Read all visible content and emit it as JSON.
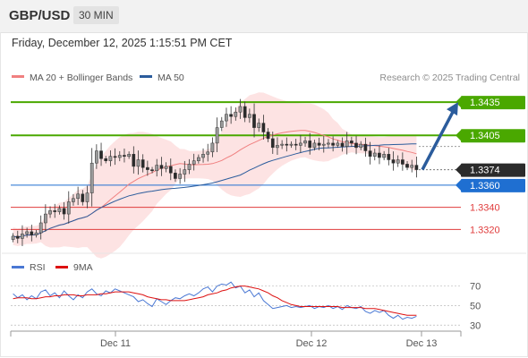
{
  "header": {
    "symbol": "GBP/USD",
    "interval": "30 MIN",
    "datetime": "Friday, December 12, 2025 1:15:51 PM CET"
  },
  "colors": {
    "ma20": "#f08080",
    "ma50": "#2b5c9c",
    "bollinger_fill": "#fde0e0",
    "resistance": "#4aa800",
    "pivot": "#1f6fd1",
    "support": "#e03c3c",
    "current_tag": "#2b2b2b",
    "arrow": "#2b5c9c",
    "rsi": "#4a78d4",
    "rsi_ma": "#dd1111",
    "candle_up": "#9a9a9a",
    "candle_down": "#2a2a2a"
  },
  "chart_data": [
    {
      "type": "candlestick",
      "legend": [
        {
          "label": "MA 20 + Bollinger Bands",
          "color_key": "ma20"
        },
        {
          "label": "MA 50",
          "color_key": "ma50"
        }
      ],
      "legend_placement": "top-left",
      "watermark": "Research © 2025 Trading Central",
      "x_ticks": [
        "Dec 11",
        "Dec 12",
        "Dec 13"
      ],
      "y_range": [
        1.3305,
        1.3448
      ],
      "levels": [
        {
          "label": "1.3435",
          "value": 1.3435,
          "kind": "resistance"
        },
        {
          "label": "1.3405",
          "value": 1.3405,
          "kind": "resistance"
        },
        {
          "label": "1.3374",
          "value": 1.3374,
          "kind": "current"
        },
        {
          "label": "1.3360",
          "value": 1.336,
          "kind": "pivot"
        },
        {
          "label": "1.3340",
          "value": 1.334,
          "kind": "support"
        },
        {
          "label": "1.3320",
          "value": 1.332,
          "kind": "support"
        }
      ],
      "forecast_arrow": {
        "from": 1.3374,
        "to": 1.3435
      },
      "close": [
        1.3314,
        1.3312,
        1.3316,
        1.3318,
        1.3315,
        1.3317,
        1.3326,
        1.3334,
        1.3337,
        1.3336,
        1.3339,
        1.3334,
        1.3345,
        1.3348,
        1.3352,
        1.3345,
        1.3353,
        1.338,
        1.3391,
        1.3384,
        1.3382,
        1.3386,
        1.3385,
        1.3387,
        1.3386,
        1.3388,
        1.3377,
        1.3383,
        1.3376,
        1.3374,
        1.3373,
        1.3378,
        1.3375,
        1.3377,
        1.3371,
        1.3366,
        1.337,
        1.3374,
        1.3379,
        1.3382,
        1.3385,
        1.3388,
        1.339,
        1.3398,
        1.3412,
        1.3418,
        1.3424,
        1.3422,
        1.3426,
        1.3431,
        1.3421,
        1.3424,
        1.3412,
        1.3416,
        1.3408,
        1.3402,
        1.3394,
        1.3396,
        1.3397,
        1.3396,
        1.3397,
        1.3396,
        1.3398,
        1.34,
        1.3394,
        1.3398,
        1.3396,
        1.3397,
        1.3398,
        1.3396,
        1.3398,
        1.3395,
        1.34,
        1.3398,
        1.3394,
        1.3397,
        1.3391,
        1.3386,
        1.3389,
        1.3385,
        1.3388,
        1.3383,
        1.338,
        1.3383,
        1.3379,
        1.3376,
        1.3378,
        1.3374
      ]
    },
    {
      "type": "line",
      "legend": [
        {
          "label": "RSI",
          "color_key": "rsi"
        },
        {
          "label": "9MA",
          "color_key": "rsi_ma"
        }
      ],
      "y_ticks": [
        70,
        50,
        30
      ],
      "y_range": [
        22,
        76
      ],
      "series": [
        {
          "name": "RSI",
          "values": [
            62,
            58,
            61,
            56,
            60,
            57,
            64,
            66,
            60,
            63,
            58,
            65,
            60,
            56,
            61,
            58,
            64,
            67,
            62,
            60,
            65,
            63,
            67,
            65,
            63,
            61,
            59,
            54,
            56,
            52,
            49,
            57,
            54,
            51,
            55,
            58,
            57,
            60,
            62,
            60,
            63,
            67,
            69,
            64,
            70,
            72,
            71,
            74,
            68,
            70,
            63,
            66,
            59,
            63,
            55,
            51,
            47,
            48,
            49,
            50,
            48,
            49,
            48,
            49,
            50,
            47,
            49,
            48,
            50,
            47,
            49,
            46,
            50,
            48,
            47,
            49,
            44,
            42,
            45,
            43,
            45,
            40,
            37,
            40,
            36,
            38,
            37,
            39
          ]
        },
        {
          "name": "9MA",
          "values": [
            57,
            58,
            58,
            58,
            57,
            57,
            58,
            59,
            59,
            60,
            60,
            61,
            61,
            61,
            60,
            60,
            61,
            61,
            61,
            62,
            62,
            63,
            64,
            64,
            64,
            64,
            63,
            62,
            61,
            59,
            58,
            57,
            56,
            56,
            55,
            55,
            55,
            55,
            56,
            57,
            58,
            59,
            61,
            62,
            63,
            65,
            66,
            68,
            69,
            70,
            70,
            69,
            68,
            67,
            65,
            63,
            60,
            58,
            55,
            53,
            51,
            50,
            49,
            49,
            49,
            49,
            49,
            49,
            49,
            49,
            49,
            48,
            48,
            48,
            48,
            48,
            47,
            47,
            47,
            46,
            45,
            44,
            43,
            42,
            41,
            40,
            40,
            40
          ]
        }
      ]
    }
  ]
}
